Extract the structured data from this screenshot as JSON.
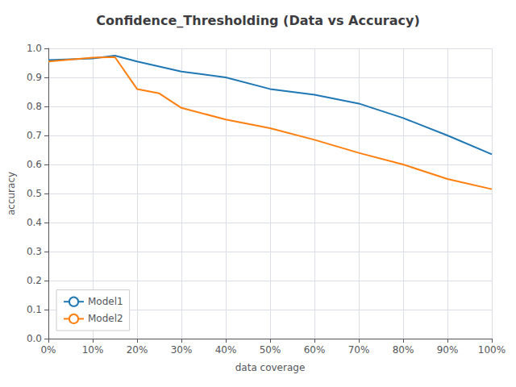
{
  "chart_data": {
    "type": "line",
    "title": "Confidence_Thresholding (Data vs Accuracy)",
    "xlabel": "data coverage",
    "ylabel": "accuracy",
    "series": [
      {
        "name": "Model1",
        "color": "#1f77b4",
        "x": [
          0.0,
          0.1,
          0.15,
          0.2,
          0.3,
          0.4,
          0.5,
          0.6,
          0.7,
          0.8,
          0.9,
          1.0
        ],
        "values": [
          0.96,
          0.965,
          0.975,
          0.955,
          0.92,
          0.9,
          0.86,
          0.84,
          0.81,
          0.76,
          0.7,
          0.635
        ]
      },
      {
        "name": "Model2",
        "color": "#ff7f0e",
        "x": [
          0.0,
          0.1,
          0.15,
          0.2,
          0.25,
          0.3,
          0.4,
          0.5,
          0.6,
          0.7,
          0.8,
          0.9,
          1.0
        ],
        "values": [
          0.955,
          0.968,
          0.97,
          0.86,
          0.845,
          0.795,
          0.755,
          0.725,
          0.685,
          0.64,
          0.6,
          0.55,
          0.515
        ]
      }
    ],
    "xlim": [
      0,
      1.0
    ],
    "ylim": [
      0.0,
      1.0
    ],
    "xticks": [
      {
        "value": 0.0,
        "label": "0%"
      },
      {
        "value": 0.1,
        "label": "10%"
      },
      {
        "value": 0.2,
        "label": "20%"
      },
      {
        "value": 0.3,
        "label": "30%"
      },
      {
        "value": 0.4,
        "label": "40%"
      },
      {
        "value": 0.5,
        "label": "50%"
      },
      {
        "value": 0.6,
        "label": "60%"
      },
      {
        "value": 0.7,
        "label": "70%"
      },
      {
        "value": 0.8,
        "label": "80%"
      },
      {
        "value": 0.9,
        "label": "90%"
      },
      {
        "value": 1.0,
        "label": "100%"
      }
    ],
    "yticks": [
      {
        "value": 0.0,
        "label": "0.0"
      },
      0.1,
      0.2,
      0.3,
      0.4,
      0.5,
      0.6,
      0.7,
      0.8,
      0.9,
      {
        "value": 1.0,
        "label": "1.0"
      }
    ],
    "grid": true,
    "legend": "lower left"
  }
}
